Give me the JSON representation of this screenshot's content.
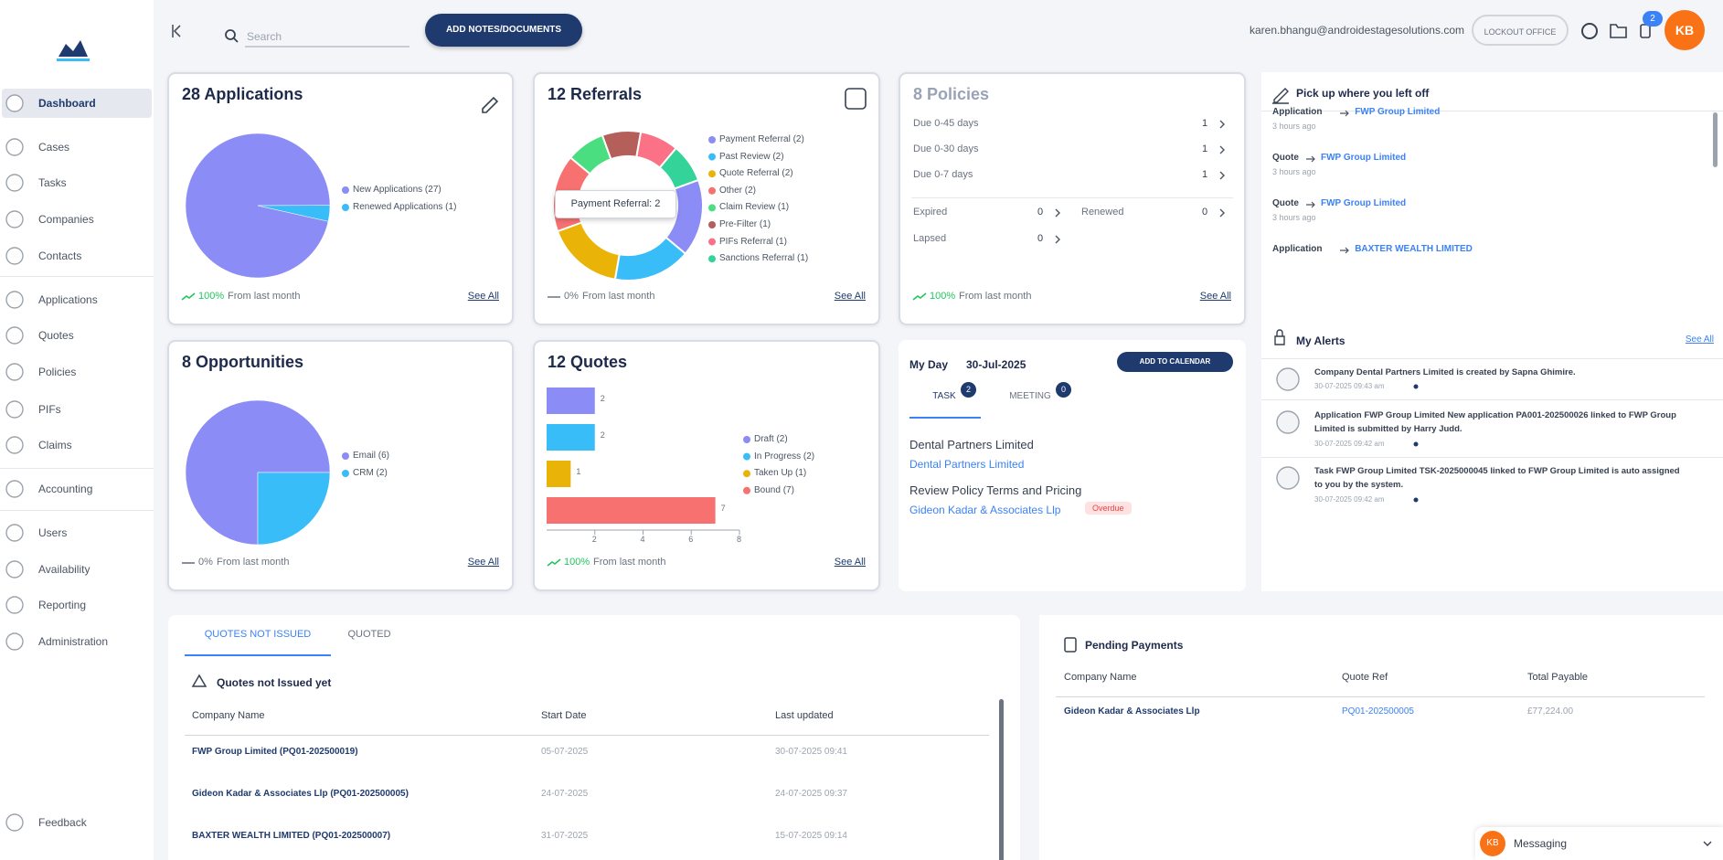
{
  "sidebar": {
    "nav": [
      "Dashboard",
      "Cases",
      "Tasks",
      "Companies",
      "Contacts",
      "Applications",
      "Quotes",
      "Policies",
      "PIFs",
      "Claims",
      "Accounting",
      "Users",
      "Availability",
      "Reporting",
      "Administration"
    ],
    "feedback": "Feedback"
  },
  "topbar": {
    "search": "Search",
    "add_button": "ADD NOTES/DOCUMENTS",
    "email": "karen.bhangu@androidestagesolutions.com",
    "lockout_button": "LOCKOUT OFFICE",
    "notifications": "2",
    "avatar": "KB"
  },
  "applications": {
    "title": "28 Applications",
    "chart": {
      "type": "pie",
      "slices": [
        {
          "name": "New Applications (27)",
          "value": 27,
          "color": "#8b8cf5"
        },
        {
          "name": "Renewed Applications (1)",
          "value": 1,
          "color": "#38bdf8"
        }
      ]
    },
    "trend": "100%",
    "trend_label": "From last month",
    "link": "See All"
  },
  "referrals": {
    "title": "12 Referrals",
    "tooltip": "Payment Referral: 2",
    "chart": {
      "type": "donut",
      "slices": [
        {
          "name": "Payment Referral (2)",
          "value": 2,
          "color": "#8b8cf5"
        },
        {
          "name": "Past Review (2)",
          "value": 2,
          "color": "#38bdf8"
        },
        {
          "name": "Quote Referral (2)",
          "value": 2,
          "color": "#eab308"
        },
        {
          "name": "Other (2)",
          "value": 2,
          "color": "#f87171"
        },
        {
          "name": "Claim Review (1)",
          "value": 1,
          "color": "#4ade80"
        },
        {
          "name": "Pre-Filter (1)",
          "value": 1,
          "color": "#b45f5a"
        },
        {
          "name": "PIFs Referral (1)",
          "value": 1,
          "color": "#fb7185"
        },
        {
          "name": "Sanctions Referral (1)",
          "value": 1,
          "color": "#34d399"
        }
      ]
    },
    "trend": "0%",
    "trend_label": "From last month",
    "link": "See All"
  },
  "policies": {
    "title": "8 Policies",
    "due": [
      {
        "label": "Due 0-45 days",
        "count": 1
      },
      {
        "label": "Due 0-30 days",
        "count": 1
      },
      {
        "label": "Due 0-7 days",
        "count": 1
      }
    ],
    "expired": {
      "label": "Expired",
      "count": 0
    },
    "renewed": {
      "label": "Renewed",
      "count": 0
    },
    "lapsed": {
      "label": "Lapsed",
      "count": 0
    },
    "trend": "100%",
    "trend_label": "From last month",
    "link": "See All"
  },
  "opportunities": {
    "title": "8 Opportunities",
    "chart": {
      "type": "pie",
      "slices": [
        {
          "name": "Email (6)",
          "value": 6,
          "color": "#8b8cf5"
        },
        {
          "name": "CRM (2)",
          "value": 2,
          "color": "#38bdf8"
        }
      ]
    },
    "trend": "0%",
    "trend_label": "From last month",
    "link": "See All"
  },
  "quotes": {
    "title": "12 Quotes",
    "chart": {
      "type": "bar",
      "orientation": "horizontal",
      "categories": [
        "Draft (2)",
        "In Progress (2)",
        "Taken Up (1)",
        "Bound (7)"
      ],
      "values": [
        2,
        2,
        1,
        7
      ],
      "colors": [
        "#8b8cf5",
        "#38bdf8",
        "#eab308",
        "#f87171"
      ],
      "xlim": [
        0,
        8
      ],
      "xticks": [
        2,
        4,
        6,
        8
      ]
    },
    "trend": "100%",
    "trend_label": "From last month",
    "link": "See All"
  },
  "my_day": {
    "title": "My Day",
    "date": "30-Jul-2025",
    "button": "ADD TO CALENDAR",
    "tabs": [
      {
        "label": "TASK",
        "badge": "2"
      },
      {
        "label": "MEETING",
        "badge": "0"
      }
    ],
    "items": [
      {
        "title": "Dental Partners Limited",
        "link": "Dental Partners Limited"
      },
      {
        "title": "Review Policy Terms and Pricing",
        "link": "Gideon Kadar & Associates Llp",
        "status": "Overdue"
      }
    ]
  },
  "recent": {
    "title": "Pick up where you left off",
    "items": [
      {
        "type": "Application",
        "name": "FWP Group Limited",
        "time": "3 hours ago"
      },
      {
        "type": "Quote",
        "name": "FWP Group Limited",
        "time": "3 hours ago"
      },
      {
        "type": "Quote",
        "name": "FWP Group Limited",
        "time": "3 hours ago"
      },
      {
        "type": "Application",
        "name": "BAXTER WEALTH LIMITED"
      }
    ]
  },
  "alerts": {
    "title": "My Alerts",
    "link": "See All",
    "items": [
      {
        "text": "Company Dental Partners Limited is created by Sapna Ghimire.",
        "date": "30-07-2025 09:43 am"
      },
      {
        "text": "Application FWP Group Limited New application PA001-202500026 linked to FWP Group Limited is submitted by Harry Judd.",
        "date": "30-07-2025 09:42 am"
      },
      {
        "text": "Task FWP Group Limited TSK-2025000045 linked to FWP Group Limited is auto assigned to you by the system.",
        "date": "30-07-2025 09:42 am"
      }
    ]
  },
  "quotes_table": {
    "tabs": [
      "QUOTES NOT ISSUED",
      "QUOTED"
    ],
    "subtitle": "Quotes not Issued yet",
    "columns": [
      "Company Name",
      "Start Date",
      "Last updated"
    ],
    "rows": [
      [
        "FWP Group Limited (PQ01-202500019)",
        "05-07-2025",
        "30-07-2025 09:41"
      ],
      [
        "Gideon Kadar & Associates Llp (PQ01-202500005)",
        "24-07-2025",
        "24-07-2025 09:37"
      ],
      [
        "BAXTER WEALTH LIMITED (PQ01-202500007)",
        "31-07-2025",
        "15-07-2025 09:14"
      ]
    ]
  },
  "payments": {
    "title": "Pending Payments",
    "columns": [
      "Company Name",
      "Quote Ref",
      "Total Payable"
    ],
    "rows": [
      [
        "Gideon Kadar & Associates Llp",
        "PQ01-202500005",
        "£77,224.00"
      ]
    ]
  },
  "messaging": {
    "avatar": "KB",
    "label": "Messaging"
  }
}
